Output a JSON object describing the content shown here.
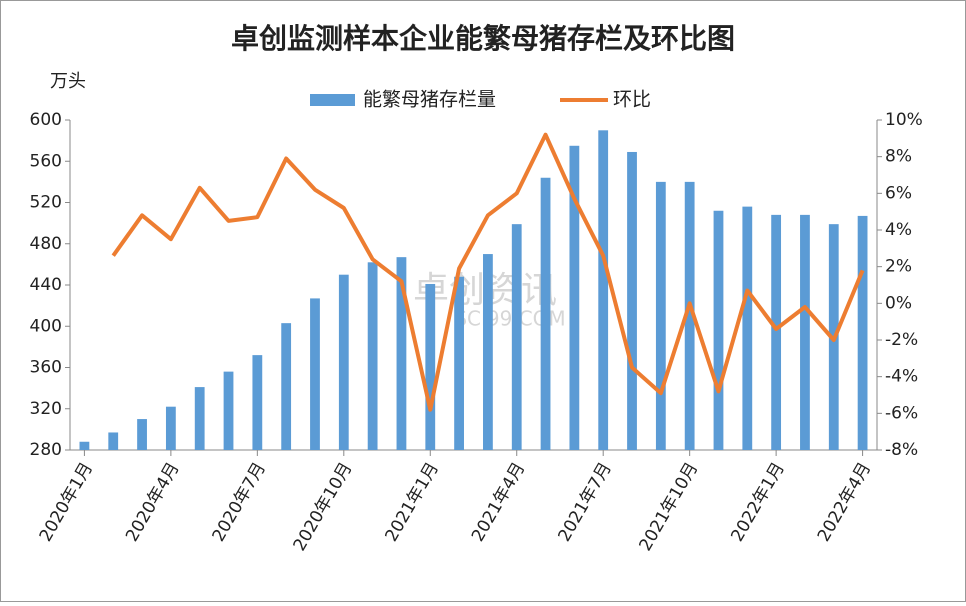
{
  "chart_data": {
    "type": "bar-line",
    "title": "卓创监测样本企业能繁母猪存栏及环比图",
    "y_label": "万头",
    "watermark": "卓创资讯",
    "watermark_sub": "SCI99.COM",
    "categories": [
      "2020年1月",
      null,
      null,
      "2020年4月",
      null,
      null,
      "2020年7月",
      null,
      null,
      "2020年10月",
      null,
      null,
      "2021年1月",
      null,
      null,
      "2021年4月",
      null,
      null,
      "2021年7月",
      null,
      null,
      "2021年10月",
      null,
      null,
      "2022年1月",
      null,
      null,
      "2022年4月"
    ],
    "series": [
      {
        "name": "能繁母猪存栏量",
        "color": "#5b9bd5",
        "type": "bar",
        "values": [
          288,
          297,
          310,
          322,
          341,
          356,
          372,
          403,
          427,
          450,
          462,
          467,
          441,
          448,
          470,
          499,
          544,
          575,
          590,
          569,
          540,
          540,
          512,
          516,
          508,
          508,
          499,
          507
        ]
      },
      {
        "name": "环比",
        "color": "#ed7d31",
        "type": "line",
        "axis": "y2",
        "values": [
          null,
          2.6,
          4.8,
          3.5,
          6.3,
          4.5,
          4.7,
          7.9,
          6.2,
          5.2,
          2.4,
          1.2,
          -5.8,
          1.9,
          4.8,
          6.0,
          9.2,
          5.7,
          2.6,
          -3.5,
          -4.9,
          0,
          -4.8,
          0.7,
          -1.4,
          -0.2,
          -2,
          1.8
        ]
      }
    ],
    "ylim": [
      280,
      600
    ],
    "yticks": [
      280,
      320,
      360,
      400,
      440,
      480,
      520,
      560,
      600
    ],
    "y2lim": [
      -8,
      10
    ],
    "y2ticks": [
      {
        "value": -8,
        "label": "-8%"
      },
      {
        "value": -6,
        "label": "-6%"
      },
      {
        "value": -4,
        "label": "-4%"
      },
      {
        "value": -2,
        "label": "-2%"
      },
      {
        "value": 0,
        "label": "0%"
      },
      {
        "value": 2,
        "label": "2%"
      },
      {
        "value": 4,
        "label": "4%"
      },
      {
        "value": 6,
        "label": "6%"
      },
      {
        "value": 8,
        "label": "8%"
      },
      {
        "value": 10,
        "label": "10%"
      }
    ],
    "legend": "top"
  }
}
